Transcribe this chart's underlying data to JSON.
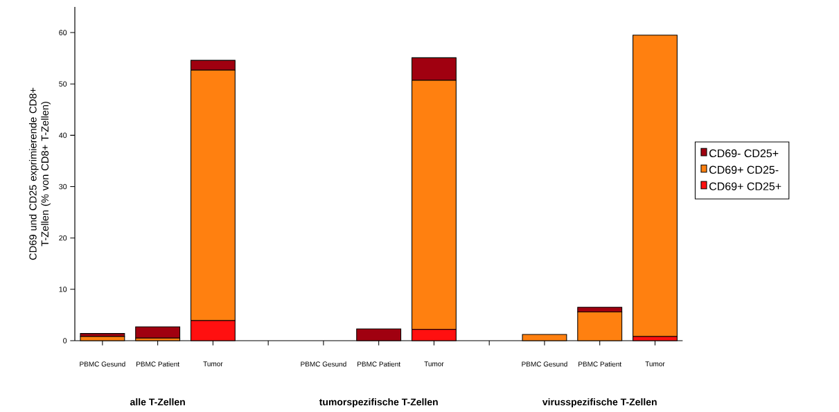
{
  "chart_data": {
    "type": "bar",
    "stacked": true,
    "ylabel": "CD69 und CD25 exprimierende CD8+ T-Zellen (% von CD8+ T-Zellen)",
    "categories": [
      "PBMC Gesund",
      "PBMC Patient",
      "Tumor",
      null,
      "PBMC Gesund",
      "PBMC Patient",
      "Tumor",
      null,
      "PBMC Gesund",
      "PBMC Patient",
      "Tumor"
    ],
    "series": [
      {
        "name": "CD69+ CD25+",
        "color": "#ff1010",
        "values": [
          0,
          0,
          3.9,
          null,
          0,
          0,
          2.2,
          null,
          0,
          0,
          0.8
        ]
      },
      {
        "name": "CD69+ CD25-",
        "color": "#ff8010",
        "values": [
          0.8,
          0.5,
          48.8,
          null,
          0,
          0,
          48.5,
          null,
          1.2,
          5.6,
          58.7
        ]
      },
      {
        "name": "CD69- CD25+",
        "color": "#a00010",
        "values": [
          0.6,
          2.2,
          1.9,
          null,
          0,
          2.3,
          4.4,
          null,
          0,
          0.9,
          0
        ]
      }
    ],
    "ylim": [
      0,
      65
    ],
    "yticks": [
      0,
      10,
      20,
      30,
      40,
      50,
      60
    ],
    "legend": "right",
    "annotations": [
      "alle T-Zellen",
      "tumorspezifische T-Zellen",
      "virusspezifische T-Zellen"
    ]
  }
}
